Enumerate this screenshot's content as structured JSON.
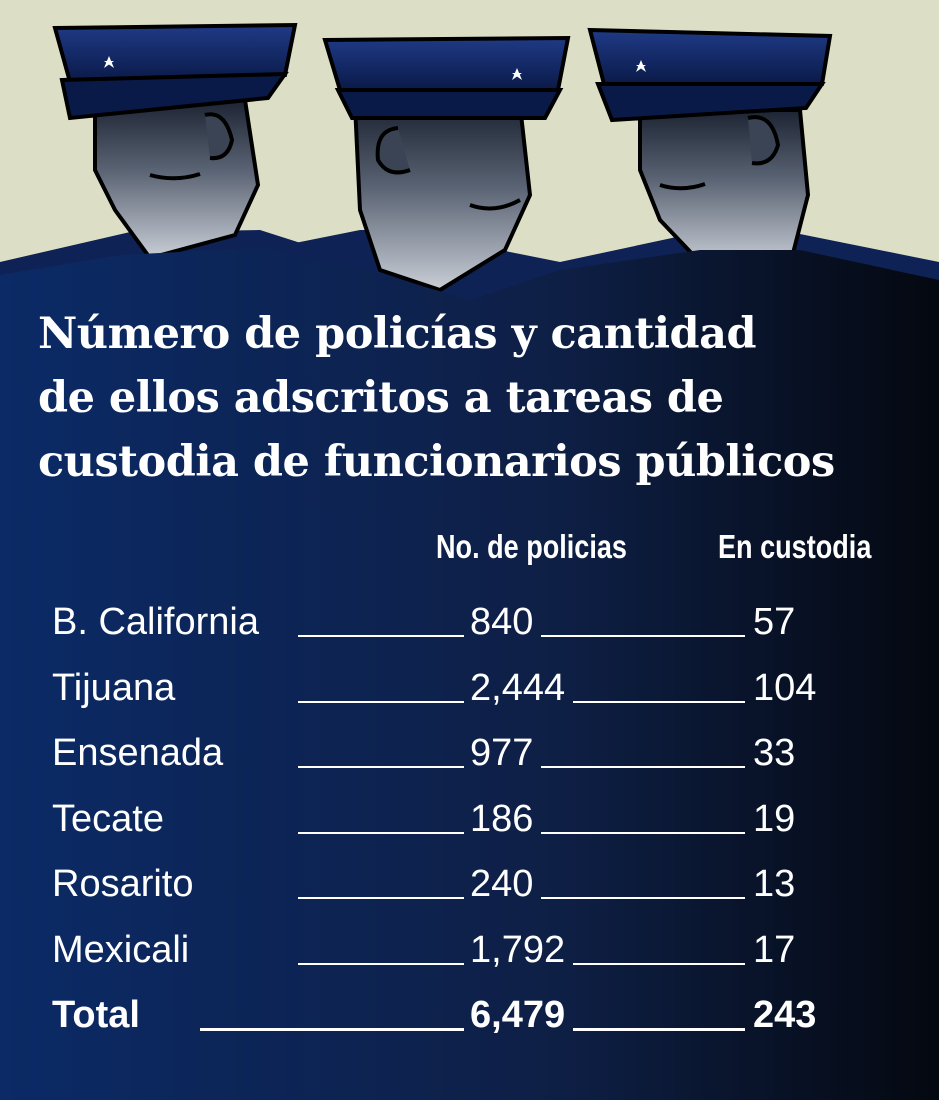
{
  "title_lines": [
    "Número de policías y cantidad",
    "de ellos adscritos a tareas de",
    "custodia de funcionarios públicos"
  ],
  "colors": {
    "background_top": "#dcdfc5",
    "panel_dark": "#0d1b3d",
    "panel_navy": "#0b2a66",
    "text": "#ffffff"
  },
  "chart_data": {
    "type": "table",
    "title": "Número de policías y cantidad de ellos adscritos a tareas de custodia de funcionarios públicos",
    "columns": [
      "No. de policias",
      "En custodia"
    ],
    "rows": [
      {
        "label": "B. California",
        "policias": "840",
        "custodia": "57"
      },
      {
        "label": "Tijuana",
        "policias": "2,444",
        "custodia": "104"
      },
      {
        "label": "Ensenada",
        "policias": "977",
        "custodia": "33"
      },
      {
        "label": "Tecate",
        "policias": "186",
        "custodia": "19"
      },
      {
        "label": "Rosarito",
        "policias": "240",
        "custodia": "13"
      },
      {
        "label": "Mexicali",
        "policias": "1,792",
        "custodia": "17"
      }
    ],
    "total": {
      "label": "Total",
      "policias": "6,479",
      "custodia": "243"
    }
  }
}
